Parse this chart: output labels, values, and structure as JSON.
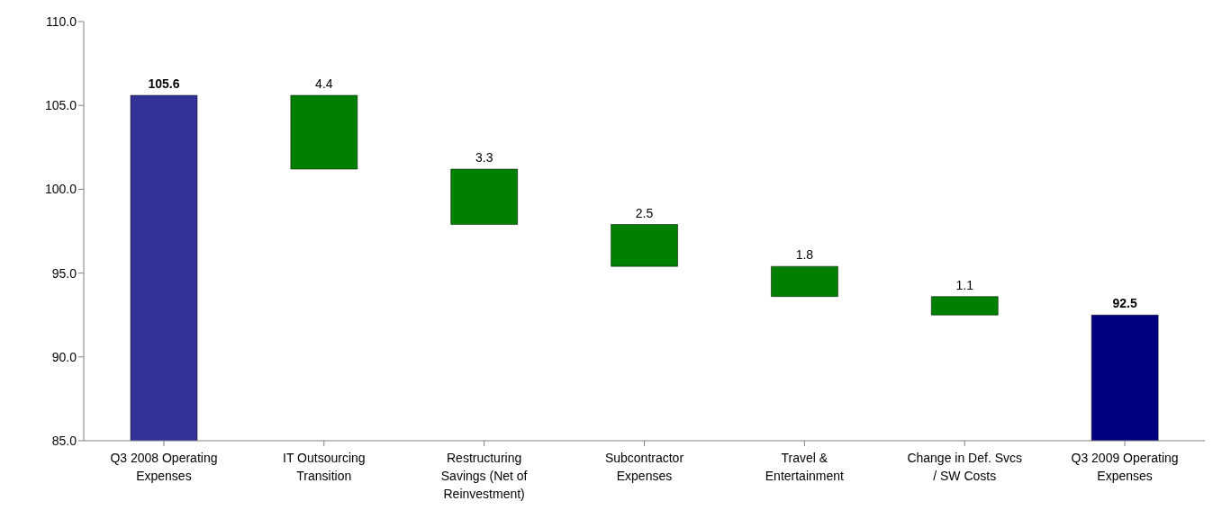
{
  "chart_data": {
    "type": "bar",
    "categories": [
      "Q3 2008 Operating Expenses",
      "IT Outsourcing Transition",
      "Restructuring Savings (Net of Reinvestment)",
      "Subcontractor Expenses",
      "Travel & Entertainment",
      "Change in Def. Svcs / SW Costs",
      "Q3 2009 Operating Expenses"
    ],
    "values": [
      105.6,
      4.4,
      3.3,
      2.5,
      1.8,
      1.1,
      92.5
    ],
    "base": [
      null,
      101.2,
      97.9,
      95.4,
      93.6,
      92.5,
      null
    ],
    "colors": [
      "#333399",
      "#008000",
      "#008000",
      "#008000",
      "#008000",
      "#008000",
      "#000080"
    ],
    "ylim": [
      85,
      110
    ],
    "yticks": [
      {
        "value": 85,
        "label": "85.0"
      },
      {
        "value": 90,
        "label": "90.0"
      },
      {
        "value": 95,
        "label": "95.0"
      },
      {
        "value": 100,
        "label": "100.0"
      },
      {
        "value": 105,
        "label": "105.0"
      },
      {
        "value": 110,
        "label": "110.0"
      }
    ],
    "data_labels": true,
    "grid": false
  }
}
